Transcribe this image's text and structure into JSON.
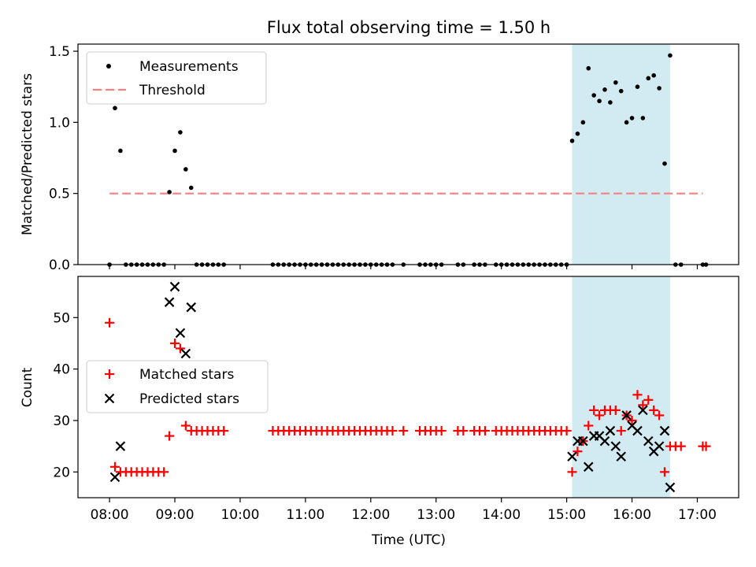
{
  "figure": {
    "title": "Flux total observing time = 1.50 h"
  },
  "chart_data": [
    {
      "type": "scatter",
      "ylabel": "Matched/Predicted stars",
      "xlim": [
        "07:31",
        "17:38"
      ],
      "ylim": [
        0,
        1.55
      ],
      "yticks": [
        {
          "v": 0,
          "label": "0.0"
        },
        {
          "v": 0.5,
          "label": "0.5"
        },
        {
          "v": 1.0,
          "label": "1.0"
        },
        {
          "v": 1.5,
          "label": "1.5"
        }
      ],
      "shaded_span": {
        "from": "15:05",
        "to": "16:35",
        "color": "#add8e6"
      },
      "legend": {
        "placement": "upper-left",
        "entries": [
          {
            "label": "Measurements",
            "marker": "dot",
            "color": "#000000"
          },
          {
            "label": "Threshold",
            "marker": "dashed-line",
            "color": "#ff7f7f"
          }
        ]
      },
      "threshold": {
        "y": 0.5,
        "from": "08:00",
        "to": "17:05",
        "color": "#ff7f7f"
      },
      "series": [
        {
          "color": "#000000",
          "points": [
            [
              "08:00",
              0
            ],
            [
              "08:05",
              1.1
            ],
            [
              "08:10",
              0.8
            ],
            [
              "08:15",
              0
            ],
            [
              "08:20",
              0
            ],
            [
              "08:25",
              0
            ],
            [
              "08:30",
              0
            ],
            [
              "08:35",
              0
            ],
            [
              "08:40",
              0
            ],
            [
              "08:45",
              0
            ],
            [
              "08:50",
              0
            ],
            [
              "08:55",
              0.51
            ],
            [
              "09:00",
              0.8
            ],
            [
              "09:05",
              0.93
            ],
            [
              "09:10",
              0.67
            ],
            [
              "09:15",
              0.54
            ],
            [
              "09:20",
              0
            ],
            [
              "09:25",
              0
            ],
            [
              "09:30",
              0
            ],
            [
              "09:35",
              0
            ],
            [
              "09:40",
              0
            ],
            [
              "09:45",
              0
            ],
            [
              "10:30",
              0
            ],
            [
              "10:35",
              0
            ],
            [
              "10:40",
              0
            ],
            [
              "10:45",
              0
            ],
            [
              "10:50",
              0
            ],
            [
              "10:55",
              0
            ],
            [
              "11:00",
              0
            ],
            [
              "11:05",
              0
            ],
            [
              "11:10",
              0
            ],
            [
              "11:15",
              0
            ],
            [
              "11:20",
              0
            ],
            [
              "11:25",
              0
            ],
            [
              "11:30",
              0
            ],
            [
              "11:35",
              0
            ],
            [
              "11:40",
              0
            ],
            [
              "11:45",
              0
            ],
            [
              "11:50",
              0
            ],
            [
              "11:55",
              0
            ],
            [
              "12:00",
              0
            ],
            [
              "12:05",
              0
            ],
            [
              "12:10",
              0
            ],
            [
              "12:15",
              0
            ],
            [
              "12:20",
              0
            ],
            [
              "12:30",
              0
            ],
            [
              "12:45",
              0
            ],
            [
              "12:50",
              0
            ],
            [
              "12:55",
              0
            ],
            [
              "13:00",
              0
            ],
            [
              "13:05",
              0
            ],
            [
              "13:20",
              0
            ],
            [
              "13:25",
              0
            ],
            [
              "13:35",
              0
            ],
            [
              "13:40",
              0
            ],
            [
              "13:45",
              0
            ],
            [
              "13:55",
              0
            ],
            [
              "14:00",
              0
            ],
            [
              "14:05",
              0
            ],
            [
              "14:10",
              0
            ],
            [
              "14:15",
              0
            ],
            [
              "14:20",
              0
            ],
            [
              "14:25",
              0
            ],
            [
              "14:30",
              0
            ],
            [
              "14:35",
              0
            ],
            [
              "14:40",
              0
            ],
            [
              "14:45",
              0
            ],
            [
              "14:50",
              0
            ],
            [
              "14:55",
              0
            ],
            [
              "15:00",
              0
            ],
            [
              "15:05",
              0.87
            ],
            [
              "15:10",
              0.92
            ],
            [
              "15:15",
              1.0
            ],
            [
              "15:20",
              1.38
            ],
            [
              "15:25",
              1.19
            ],
            [
              "15:30",
              1.15
            ],
            [
              "15:35",
              1.23
            ],
            [
              "15:40",
              1.14
            ],
            [
              "15:45",
              1.28
            ],
            [
              "15:50",
              1.22
            ],
            [
              "15:55",
              1.0
            ],
            [
              "16:00",
              1.03
            ],
            [
              "16:05",
              1.25
            ],
            [
              "16:10",
              1.03
            ],
            [
              "16:15",
              1.31
            ],
            [
              "16:20",
              1.33
            ],
            [
              "16:25",
              1.24
            ],
            [
              "16:30",
              0.71
            ],
            [
              "16:35",
              1.47
            ],
            [
              "16:40",
              0
            ],
            [
              "16:45",
              0
            ],
            [
              "17:05",
              0
            ],
            [
              "17:08",
              0
            ]
          ]
        }
      ]
    },
    {
      "type": "scatter",
      "xlabel": "Time (UTC)",
      "ylabel": "Count",
      "xlim": [
        "07:31",
        "17:38"
      ],
      "ylim": [
        15,
        58
      ],
      "yticks": [
        {
          "v": 20,
          "label": "20"
        },
        {
          "v": 30,
          "label": "30"
        },
        {
          "v": 40,
          "label": "40"
        },
        {
          "v": 50,
          "label": "50"
        }
      ],
      "xticks": [
        {
          "v": "08:00",
          "label": "08:00"
        },
        {
          "v": "09:00",
          "label": "09:00"
        },
        {
          "v": "10:00",
          "label": "10:00"
        },
        {
          "v": "11:00",
          "label": "11:00"
        },
        {
          "v": "12:00",
          "label": "12:00"
        },
        {
          "v": "13:00",
          "label": "13:00"
        },
        {
          "v": "14:00",
          "label": "14:00"
        },
        {
          "v": "15:00",
          "label": "15:00"
        },
        {
          "v": "16:00",
          "label": "16:00"
        },
        {
          "v": "17:00",
          "label": "17:00"
        }
      ],
      "shaded_span": {
        "from": "15:05",
        "to": "16:35",
        "color": "#add8e6"
      },
      "legend": {
        "placement": "center-left",
        "entries": [
          {
            "label": "Matched stars",
            "marker": "plus",
            "color": "#ff0000"
          },
          {
            "label": "Predicted stars",
            "marker": "x",
            "color": "#000000"
          }
        ]
      },
      "series": [
        {
          "name": "Matched stars",
          "marker": "plus",
          "color": "#ff0000",
          "points": [
            [
              "08:00",
              49
            ],
            [
              "08:05",
              21
            ],
            [
              "08:10",
              20
            ],
            [
              "08:15",
              20
            ],
            [
              "08:20",
              20
            ],
            [
              "08:25",
              20
            ],
            [
              "08:30",
              20
            ],
            [
              "08:35",
              20
            ],
            [
              "08:40",
              20
            ],
            [
              "08:45",
              20
            ],
            [
              "08:50",
              20
            ],
            [
              "08:55",
              27
            ],
            [
              "09:00",
              45
            ],
            [
              "09:05",
              44
            ],
            [
              "09:10",
              29
            ],
            [
              "09:15",
              28
            ],
            [
              "09:20",
              28
            ],
            [
              "09:25",
              28
            ],
            [
              "09:30",
              28
            ],
            [
              "09:35",
              28
            ],
            [
              "09:40",
              28
            ],
            [
              "09:45",
              28
            ],
            [
              "10:30",
              28
            ],
            [
              "10:35",
              28
            ],
            [
              "10:40",
              28
            ],
            [
              "10:45",
              28
            ],
            [
              "10:50",
              28
            ],
            [
              "10:55",
              28
            ],
            [
              "11:00",
              28
            ],
            [
              "11:05",
              28
            ],
            [
              "11:10",
              28
            ],
            [
              "11:15",
              28
            ],
            [
              "11:20",
              28
            ],
            [
              "11:25",
              28
            ],
            [
              "11:30",
              28
            ],
            [
              "11:35",
              28
            ],
            [
              "11:40",
              28
            ],
            [
              "11:45",
              28
            ],
            [
              "11:50",
              28
            ],
            [
              "11:55",
              28
            ],
            [
              "12:00",
              28
            ],
            [
              "12:05",
              28
            ],
            [
              "12:10",
              28
            ],
            [
              "12:15",
              28
            ],
            [
              "12:20",
              28
            ],
            [
              "12:30",
              28
            ],
            [
              "12:45",
              28
            ],
            [
              "12:50",
              28
            ],
            [
              "12:55",
              28
            ],
            [
              "13:00",
              28
            ],
            [
              "13:05",
              28
            ],
            [
              "13:20",
              28
            ],
            [
              "13:25",
              28
            ],
            [
              "13:35",
              28
            ],
            [
              "13:40",
              28
            ],
            [
              "13:45",
              28
            ],
            [
              "13:55",
              28
            ],
            [
              "14:00",
              28
            ],
            [
              "14:05",
              28
            ],
            [
              "14:10",
              28
            ],
            [
              "14:15",
              28
            ],
            [
              "14:20",
              28
            ],
            [
              "14:25",
              28
            ],
            [
              "14:30",
              28
            ],
            [
              "14:35",
              28
            ],
            [
              "14:40",
              28
            ],
            [
              "14:45",
              28
            ],
            [
              "14:50",
              28
            ],
            [
              "14:55",
              28
            ],
            [
              "15:00",
              28
            ],
            [
              "15:05",
              20
            ],
            [
              "15:10",
              24
            ],
            [
              "15:15",
              26
            ],
            [
              "15:20",
              29
            ],
            [
              "15:25",
              32
            ],
            [
              "15:30",
              31
            ],
            [
              "15:35",
              32
            ],
            [
              "15:40",
              32
            ],
            [
              "15:45",
              32
            ],
            [
              "15:50",
              28
            ],
            [
              "15:55",
              31
            ],
            [
              "16:00",
              30
            ],
            [
              "16:05",
              35
            ],
            [
              "16:10",
              33
            ],
            [
              "16:15",
              34
            ],
            [
              "16:20",
              32
            ],
            [
              "16:25",
              31
            ],
            [
              "16:30",
              20
            ],
            [
              "16:35",
              25
            ],
            [
              "16:40",
              25
            ],
            [
              "16:45",
              25
            ],
            [
              "17:05",
              25
            ],
            [
              "17:08",
              25
            ]
          ]
        },
        {
          "name": "Predicted stars",
          "marker": "x",
          "color": "#000000",
          "points": [
            [
              "08:05",
              19
            ],
            [
              "08:10",
              25
            ],
            [
              "08:55",
              53
            ],
            [
              "09:00",
              56
            ],
            [
              "09:05",
              47
            ],
            [
              "09:10",
              43
            ],
            [
              "09:15",
              52
            ],
            [
              "15:05",
              23
            ],
            [
              "15:10",
              26
            ],
            [
              "15:15",
              26
            ],
            [
              "15:20",
              21
            ],
            [
              "15:25",
              27
            ],
            [
              "15:30",
              27
            ],
            [
              "15:35",
              26
            ],
            [
              "15:40",
              28
            ],
            [
              "15:45",
              25
            ],
            [
              "15:50",
              23
            ],
            [
              "15:55",
              31
            ],
            [
              "16:00",
              29
            ],
            [
              "16:05",
              28
            ],
            [
              "16:10",
              32
            ],
            [
              "16:15",
              26
            ],
            [
              "16:20",
              24
            ],
            [
              "16:25",
              25
            ],
            [
              "16:30",
              28
            ],
            [
              "16:35",
              17
            ]
          ]
        }
      ]
    }
  ]
}
